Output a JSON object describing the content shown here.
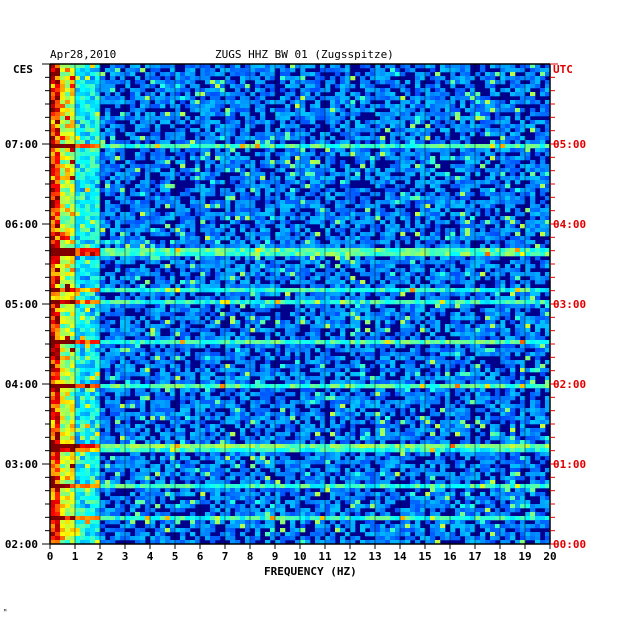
{
  "header": {
    "date": "Apr28,2010",
    "station": "ZUGS HHZ BW 01 (Zugsspitze)",
    "left_zone": "CES",
    "right_zone": "UTC"
  },
  "footer": {
    "mark": "ᴹ"
  },
  "colors": {
    "left_axis": "#000000",
    "right_axis": "#e00000",
    "background_low": "#00008c",
    "grid": "#000000"
  },
  "chart_data": {
    "type": "heatmap",
    "title": "ZUGS HHZ BW 01 (Zugsspitze)",
    "xlabel": "FREQUENCY (HZ)",
    "x_ticks": [
      "0",
      "1",
      "2",
      "3",
      "4",
      "5",
      "6",
      "7",
      "8",
      "9",
      "10",
      "11",
      "12",
      "13",
      "14",
      "15",
      "16",
      "17",
      "18",
      "19",
      "20"
    ],
    "xlim": [
      0,
      20
    ],
    "y_left_ticks": [
      "07:00",
      "06:00",
      "05:00",
      "04:00",
      "03:00",
      "02:00"
    ],
    "y_right_ticks": [
      "05:00",
      "04:00",
      "03:00",
      "02:00",
      "01:00",
      "00:00"
    ],
    "y_range_utc_hours": [
      0,
      6
    ],
    "colormap": "jet",
    "grid": true
  }
}
